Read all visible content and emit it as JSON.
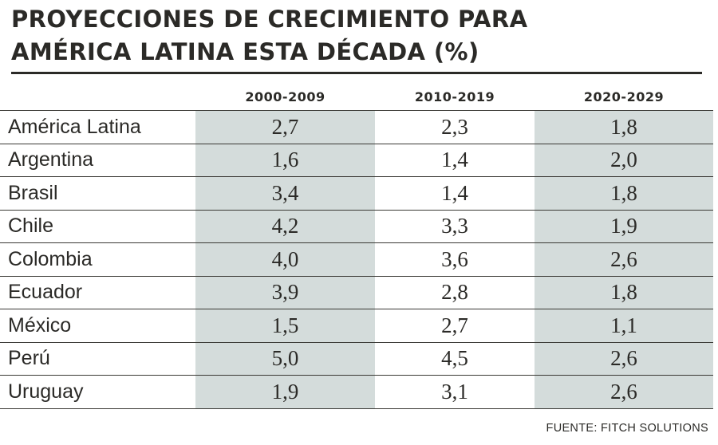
{
  "chart_data": {
    "type": "table",
    "title_lines": [
      "PROYECCIONES DE CRECIMIENTO PARA",
      "AMÉRICA LATINA ESTA DÉCADA (%)"
    ],
    "columns": [
      "2000-2009",
      "2010-2019",
      "2020-2029"
    ],
    "shaded_columns": [
      "2000-2009",
      "2020-2029"
    ],
    "shade_color": "#d4dcdb",
    "rows": [
      {
        "country": "América Latina",
        "values": [
          "2,7",
          "2,3",
          "1,8"
        ]
      },
      {
        "country": "Argentina",
        "values": [
          "1,6",
          "1,4",
          "2,0"
        ]
      },
      {
        "country": "Brasil",
        "values": [
          "3,4",
          "1,4",
          "1,8"
        ]
      },
      {
        "country": "Chile",
        "values": [
          "4,2",
          "3,3",
          "1,9"
        ]
      },
      {
        "country": "Colombia",
        "values": [
          "4,0",
          "3,6",
          "2,6"
        ]
      },
      {
        "country": "Ecuador",
        "values": [
          "3,9",
          "2,8",
          "1,8"
        ]
      },
      {
        "country": "México",
        "values": [
          "1,5",
          "2,7",
          "1,1"
        ]
      },
      {
        "country": "Perú",
        "values": [
          "5,0",
          "4,5",
          "2,6"
        ]
      },
      {
        "country": "Uruguay",
        "values": [
          "1,9",
          "3,1",
          "2,6"
        ]
      }
    ],
    "source": "FUENTE: FITCH SOLUTIONS"
  }
}
